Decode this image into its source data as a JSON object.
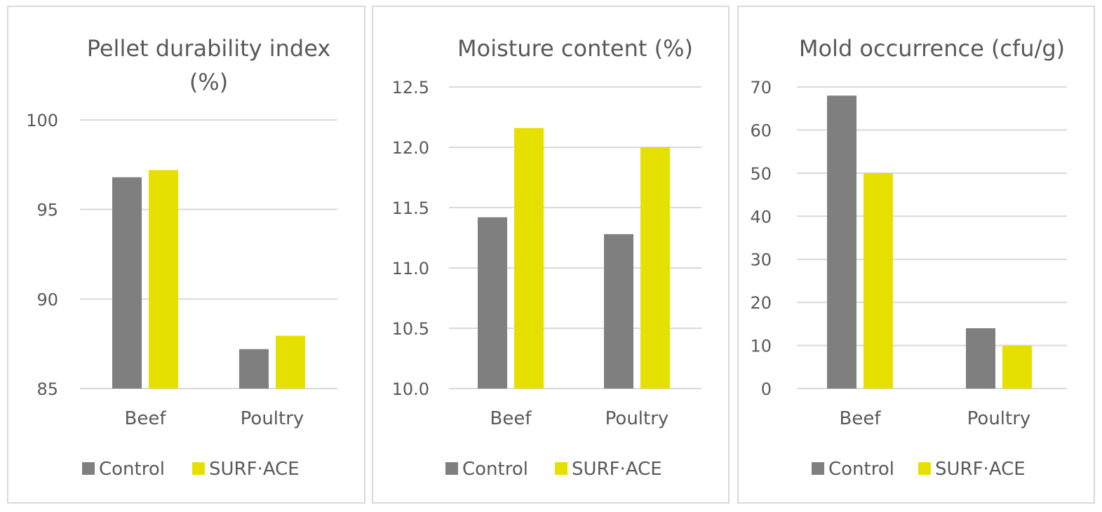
{
  "colors": {
    "control": "#7f7f7f",
    "surf_ace": "#e6e000",
    "grid": "#d9d9d9"
  },
  "chart_data": [
    {
      "type": "bar",
      "title_lines": [
        "Pellet durability index",
        "(%)"
      ],
      "categories": [
        "Beef",
        "Poultry"
      ],
      "series": [
        {
          "name": "Control",
          "values": [
            96.8,
            87.2
          ]
        },
        {
          "name": "SURF·ACE",
          "values": [
            97.2,
            87.95
          ]
        }
      ],
      "ylim": [
        85,
        100
      ],
      "yticks": [
        85,
        90,
        95,
        100
      ],
      "ytick_labels": [
        "85",
        "90",
        "95",
        "100"
      ],
      "grid": true,
      "legend": "bottom"
    },
    {
      "type": "bar",
      "title_lines": [
        "Moisture content (%)"
      ],
      "categories": [
        "Beef",
        "Poultry"
      ],
      "series": [
        {
          "name": "Control",
          "values": [
            11.42,
            11.28
          ]
        },
        {
          "name": "SURF·ACE",
          "values": [
            12.16,
            12.0
          ]
        }
      ],
      "ylim": [
        10.0,
        12.5
      ],
      "yticks": [
        10.0,
        10.5,
        11.0,
        11.5,
        12.0,
        12.5
      ],
      "ytick_labels": [
        "10.0",
        "10.5",
        "11.0",
        "11.5",
        "12.0",
        "12.5"
      ],
      "grid": true,
      "legend": "bottom"
    },
    {
      "type": "bar",
      "title_lines": [
        "Mold occurrence (cfu/g)"
      ],
      "categories": [
        "Beef",
        "Poultry"
      ],
      "series": [
        {
          "name": "Control",
          "values": [
            68,
            14
          ]
        },
        {
          "name": "SURF·ACE",
          "values": [
            50,
            10
          ]
        }
      ],
      "ylim": [
        0,
        70
      ],
      "yticks": [
        0,
        10,
        20,
        30,
        40,
        50,
        60,
        70
      ],
      "ytick_labels": [
        "0",
        "10",
        "20",
        "30",
        "40",
        "50",
        "60",
        "70"
      ],
      "grid": true,
      "legend": "bottom"
    }
  ]
}
